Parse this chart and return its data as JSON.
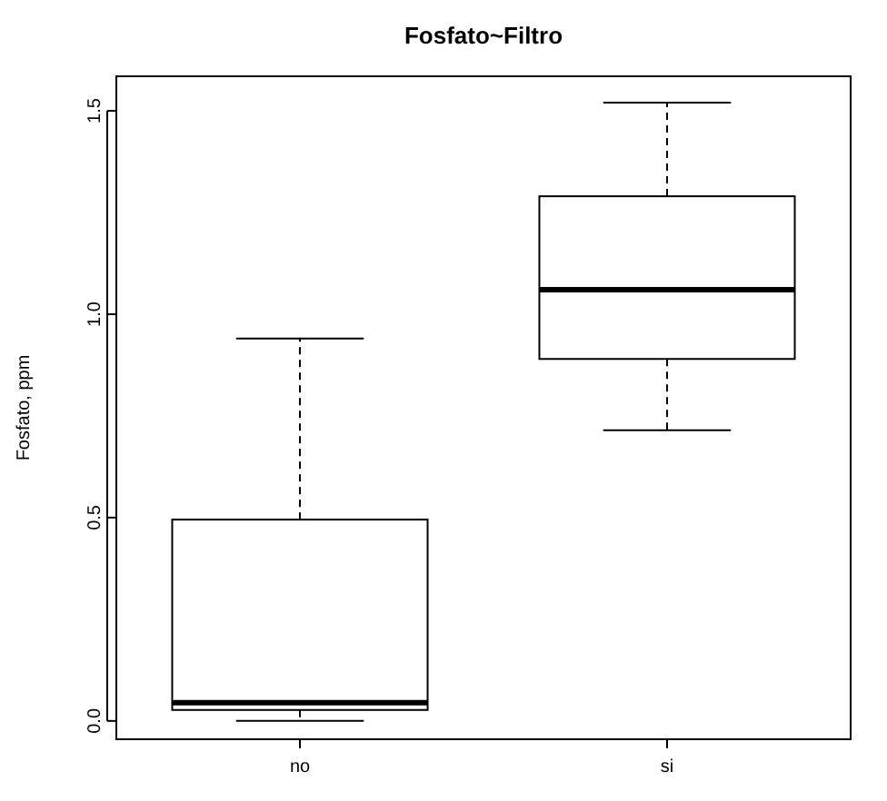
{
  "chart_data": {
    "type": "box",
    "title": "Fosfato~Filtro",
    "ylabel": "Fosfato, ppm",
    "categories": [
      "no",
      "si"
    ],
    "boxes": [
      {
        "low": 0,
        "q1": 0.027,
        "median": 0.045,
        "q3": 0.495,
        "high": 0.94
      },
      {
        "low": 0.715,
        "q1": 0.89,
        "median": 1.06,
        "q3": 1.29,
        "high": 1.52
      }
    ],
    "ylim": [
      -0.045,
      1.585
    ],
    "yticks": [
      {
        "value": 0,
        "label": "0.0"
      },
      {
        "value": 0.5,
        "label": "0.5"
      },
      {
        "value": 1,
        "label": "1.0"
      },
      {
        "value": 1.5,
        "label": "1.5"
      }
    ]
  }
}
